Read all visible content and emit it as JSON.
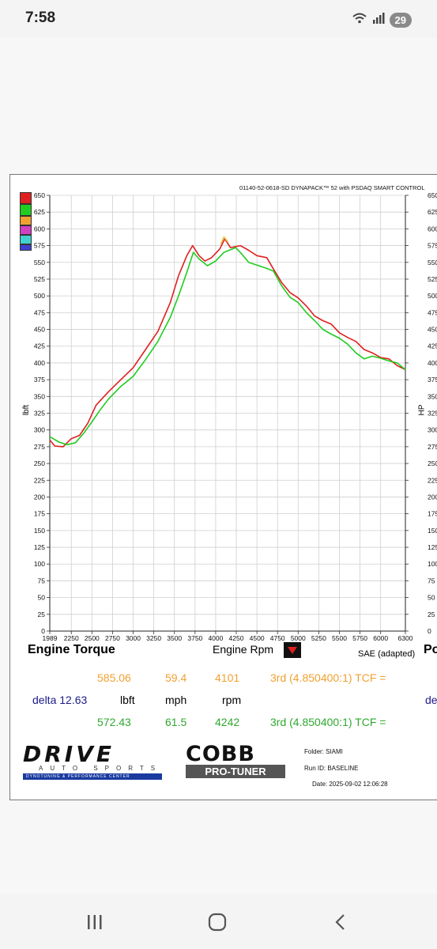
{
  "status_bar": {
    "time": "7:58",
    "notification_count": "29"
  },
  "header": {
    "dyno_info": "01140-52-0618-SD DYNAPACK™ 52 with PSDAQ SMART CONTROL"
  },
  "legend_colors": [
    "#e02020",
    "#20cc20",
    "#f0a030",
    "#d040c0",
    "#40d0d0",
    "#4040d0"
  ],
  "axis_labels": {
    "left": "lbft",
    "right": "HP",
    "x_title": "Engine Rpm",
    "left_title": "Engine Torque",
    "right_title_partial": "Po",
    "sae": "SAE (adapted)"
  },
  "readouts": {
    "run1": {
      "value": "585.06",
      "mph": "59.4",
      "rpm": "4101",
      "gear": "3rd (4.850400:1) TCF ="
    },
    "delta": {
      "label": "delta 12.63",
      "unit1": "lbft",
      "unit2": "mph",
      "unit3": "rpm",
      "right_partial": "de"
    },
    "run2": {
      "value": "572.43",
      "mph": "61.5",
      "rpm": "4242",
      "gear": "3rd (4.850400:1) TCF ="
    }
  },
  "logos": {
    "drive_main": "DRIVE",
    "drive_sub": "AUTO SPORTS",
    "drive_tag": "DYNOTUNING & PERFORMANCE CENTER",
    "cobb_main": "COBB",
    "cobb_sub": "PRO-TUNER"
  },
  "run_info": {
    "folder": "Folder:  SIAMI",
    "run_id": "Run ID: BASELINE",
    "date": "Date: 2025-09-02 12:06:28"
  },
  "chart_data": {
    "type": "line",
    "xlabel": "Engine Rpm",
    "ylabel": "lbft",
    "y2label": "HP",
    "xlim": [
      1989,
      6300
    ],
    "ylim": [
      0,
      650
    ],
    "x_ticks": [
      "1989",
      "2250",
      "2500",
      "2750",
      "3000",
      "3250",
      "3500",
      "3750",
      "4000",
      "4250",
      "4500",
      "4750",
      "5000",
      "5250",
      "5500",
      "5750",
      "6000",
      "6300"
    ],
    "y_ticks": [
      "0",
      "25",
      "50",
      "75",
      "100",
      "125",
      "150",
      "175",
      "200",
      "225",
      "250",
      "275",
      "300",
      "325",
      "350",
      "375",
      "400",
      "425",
      "450",
      "475",
      "500",
      "525",
      "550",
      "575",
      "600",
      "625",
      "650"
    ],
    "grid": true,
    "series": [
      {
        "color": "#e02020",
        "points": [
          [
            1989,
            285
          ],
          [
            2050,
            276
          ],
          [
            2150,
            275
          ],
          [
            2250,
            287
          ],
          [
            2350,
            292
          ],
          [
            2450,
            310
          ],
          [
            2550,
            337
          ],
          [
            2700,
            357
          ],
          [
            2850,
            375
          ],
          [
            3000,
            393
          ],
          [
            3150,
            420
          ],
          [
            3300,
            447
          ],
          [
            3450,
            490
          ],
          [
            3550,
            530
          ],
          [
            3650,
            560
          ],
          [
            3720,
            575
          ],
          [
            3800,
            560
          ],
          [
            3870,
            552
          ],
          [
            3950,
            557
          ],
          [
            4050,
            570
          ],
          [
            4110,
            585
          ],
          [
            4180,
            572
          ],
          [
            4300,
            575
          ],
          [
            4400,
            568
          ],
          [
            4500,
            560
          ],
          [
            4620,
            557
          ],
          [
            4700,
            540
          ],
          [
            4800,
            520
          ],
          [
            4900,
            505
          ],
          [
            5000,
            497
          ],
          [
            5100,
            485
          ],
          [
            5200,
            470
          ],
          [
            5300,
            463
          ],
          [
            5400,
            458
          ],
          [
            5500,
            445
          ],
          [
            5600,
            438
          ],
          [
            5700,
            432
          ],
          [
            5800,
            420
          ],
          [
            5900,
            415
          ],
          [
            6000,
            408
          ],
          [
            6100,
            406
          ],
          [
            6200,
            396
          ],
          [
            6300,
            390
          ]
        ]
      },
      {
        "color": "#20cc20",
        "points": [
          [
            1989,
            290
          ],
          [
            2100,
            282
          ],
          [
            2200,
            278
          ],
          [
            2300,
            281
          ],
          [
            2400,
            295
          ],
          [
            2500,
            312
          ],
          [
            2600,
            330
          ],
          [
            2700,
            346
          ],
          [
            2850,
            365
          ],
          [
            3000,
            380
          ],
          [
            3150,
            405
          ],
          [
            3300,
            432
          ],
          [
            3450,
            468
          ],
          [
            3550,
            500
          ],
          [
            3650,
            535
          ],
          [
            3730,
            565
          ],
          [
            3800,
            555
          ],
          [
            3900,
            545
          ],
          [
            4000,
            552
          ],
          [
            4100,
            565
          ],
          [
            4242,
            572
          ],
          [
            4320,
            562
          ],
          [
            4400,
            550
          ],
          [
            4500,
            546
          ],
          [
            4600,
            542
          ],
          [
            4700,
            537
          ],
          [
            4800,
            515
          ],
          [
            4900,
            498
          ],
          [
            5000,
            490
          ],
          [
            5100,
            475
          ],
          [
            5200,
            463
          ],
          [
            5300,
            450
          ],
          [
            5400,
            443
          ],
          [
            5500,
            437
          ],
          [
            5600,
            428
          ],
          [
            5700,
            415
          ],
          [
            5800,
            406
          ],
          [
            5900,
            410
          ],
          [
            6000,
            407
          ],
          [
            6100,
            403
          ],
          [
            6200,
            400
          ],
          [
            6300,
            390
          ]
        ]
      },
      {
        "color": "#e8c040",
        "points": [
          [
            4060,
            577
          ],
          [
            4101,
            588
          ],
          [
            4150,
            580
          ]
        ]
      }
    ]
  }
}
